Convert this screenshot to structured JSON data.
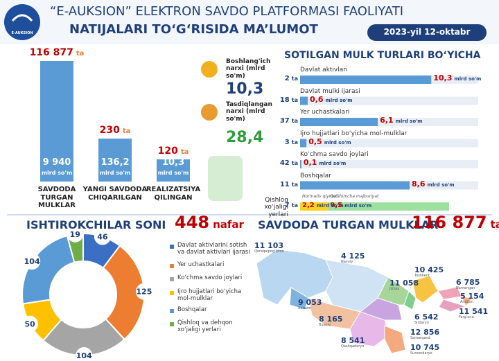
{
  "header": {
    "logo": "E-AUKSION",
    "title": "“E-AUKSION” ELEKTRON SAVDO PLATFORMASI FAOLIYATI",
    "subtitle": "NATIJALARI TO‘G‘RISIDA MA’LUMOT",
    "date": "2023-yil 12-oktabr"
  },
  "summary": {
    "count_unit": "ta",
    "amount_unit": "mlrd so'm",
    "items": [
      {
        "count": "116 877",
        "amount": "9 940",
        "label": "SAVDODA TURGAN MULKLAR"
      },
      {
        "count": "230",
        "amount": "136,2",
        "label": "YANGI SAVDODA CHIQARILGAN"
      },
      {
        "count": "120",
        "amount": "10,3",
        "label": "REALIZATSIYA QILINGAN"
      }
    ]
  },
  "prices": [
    {
      "label": "Boshlang'ich narxi (mlrd so'm)",
      "value": "10,3"
    },
    {
      "label": "Tasdiqlangan narxi (mlrd so'm)",
      "value": "28,4"
    }
  ],
  "chart_data": [
    {
      "type": "bar",
      "orientation": "horizontal",
      "title": "SOTILGAN MULK TURLARI BO‘YICHA",
      "categories": [
        "Davlat aktivlari",
        "Davlat mulki ijarasi",
        "Yer uchastkalari",
        "Ijro hujjatlari bo‘yicha mol-mulklar",
        "Ko‘chma savdo joylari",
        "Boshqalar"
      ],
      "counts": [
        2,
        18,
        37,
        3,
        42,
        11
      ],
      "count_unit": "ta",
      "values": [
        10.3,
        0.6,
        6.1,
        0.5,
        0.1,
        8.6
      ],
      "value_labels": [
        "10,3",
        "0,6",
        "6,1",
        "0,5",
        "0,1",
        "8,6"
      ],
      "unit": "mlrd so'm",
      "color": "#5b9bd5",
      "label_color": "#c00000",
      "stacked_row": {
        "label": "Qishloq xo‘jaligi yerlari",
        "count": 7,
        "segments": [
          {
            "name": "Normativ qiymati",
            "value": 2.2,
            "value_label": "2,2",
            "color": "#ffd21f"
          },
          {
            "name": "Qo‘shimcha majburiyat",
            "value": 9.5,
            "value_label": "9,5",
            "color": "#9ee0a0"
          }
        ]
      }
    },
    {
      "type": "pie",
      "donut": true,
      "title": "ISHTIROKCHILAR SONI",
      "total": 448,
      "total_unit": "nafar",
      "categories": [
        "Davlat aktivlarini sotish va davlat aktivlari ijarasi",
        "Yer uchastkalari",
        "Ko‘chma savdo joylari",
        "Ijro hujjatlari bo‘yicha mol-mulklar",
        "Boshqalar",
        "Qishloq va dehqon xo‘jaligi yerlari"
      ],
      "values": [
        46,
        125,
        104,
        50,
        104,
        19
      ],
      "colors": [
        "#3b6fc4",
        "#ed7d31",
        "#a5a5a5",
        "#ffc000",
        "#5b9bd5",
        "#70ad47"
      ]
    }
  ],
  "map": {
    "title": "SAVDODA TURGAN MULKLAR",
    "total": "116 877",
    "total_unit": "ta",
    "regions": [
      {
        "value": "11 103",
        "name": "Qoraqalpog‘iston"
      },
      {
        "value": "4 125",
        "name": "Navoiy"
      },
      {
        "value": "10 425",
        "name": "Toshkent"
      },
      {
        "value": "6 785",
        "name": "Namangan"
      },
      {
        "value": "5 154",
        "name": "Andijon"
      },
      {
        "value": "11 541",
        "name": "Farg‘ona"
      },
      {
        "value": "11 058",
        "name": "Jizzax"
      },
      {
        "value": "6 542",
        "name": "Sirdaryo"
      },
      {
        "value": "12 856",
        "name": "Samarqand"
      },
      {
        "value": "10 745",
        "name": "Surxondaryo"
      },
      {
        "value": "8 541",
        "name": "Qashqadaryo"
      },
      {
        "value": "8 165",
        "name": "Buxoro"
      },
      {
        "value": "9 053",
        "name": "Xorazm"
      }
    ]
  }
}
